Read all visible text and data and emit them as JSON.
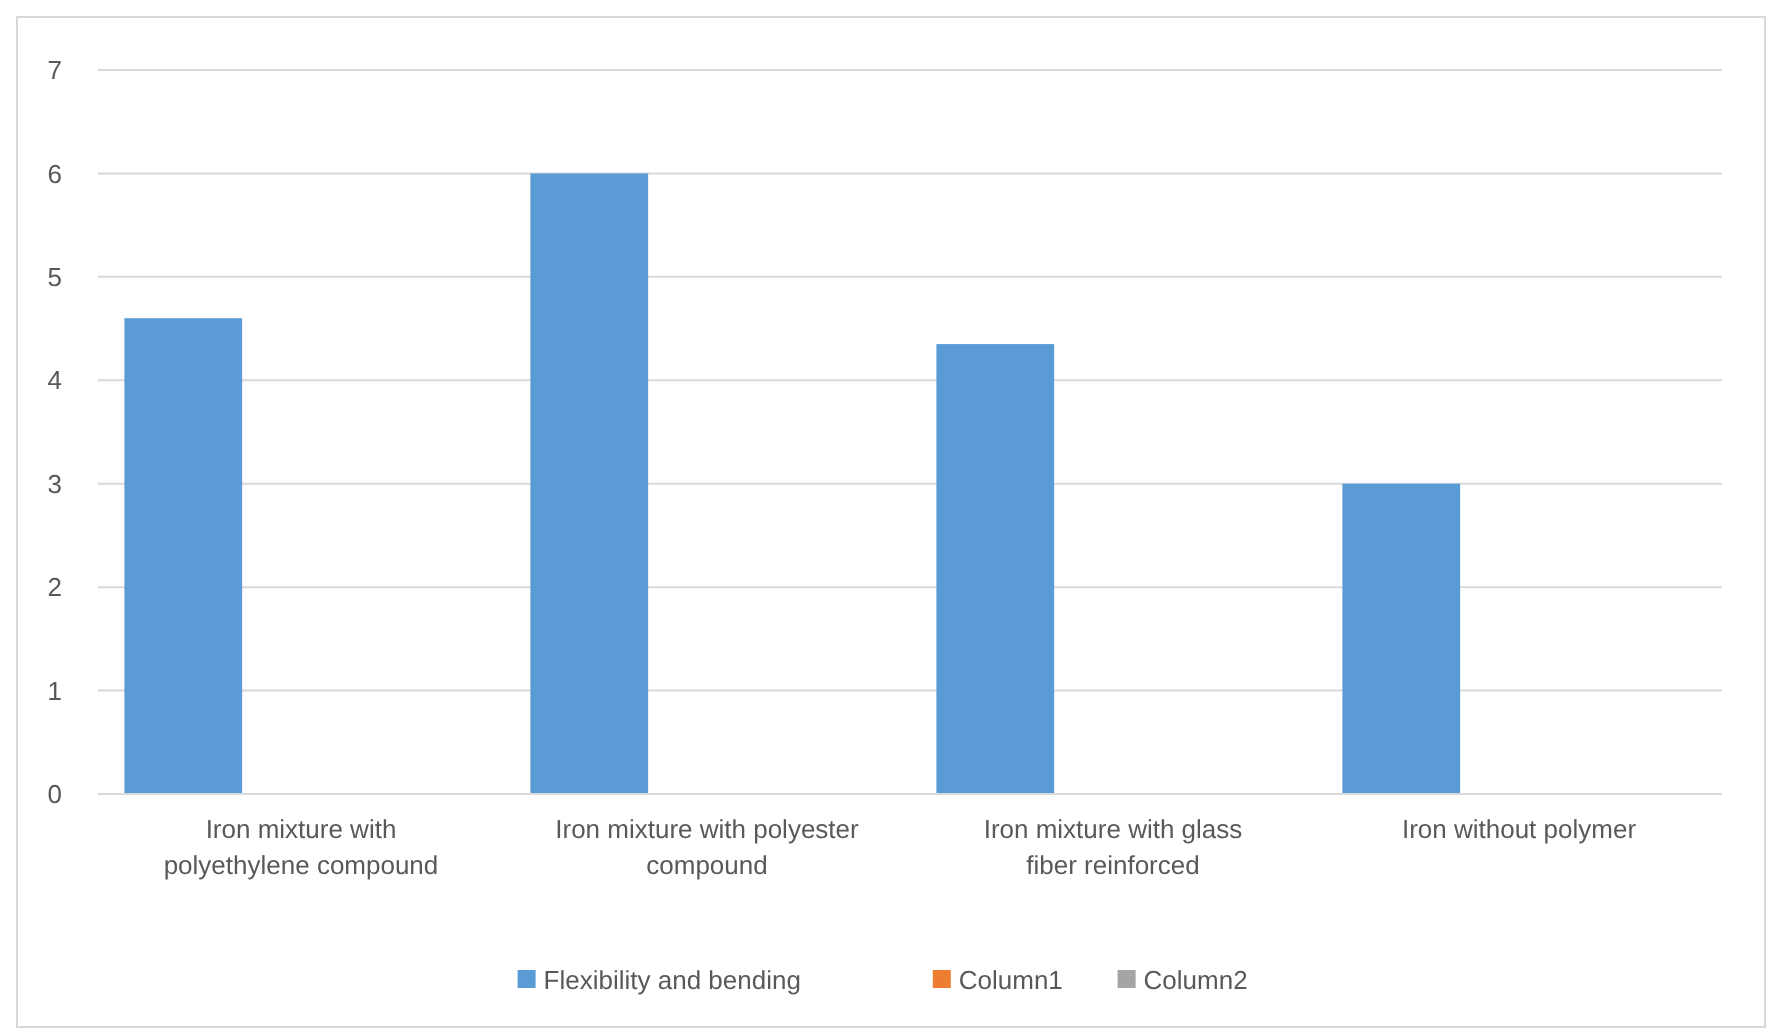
{
  "chart_data": {
    "type": "bar",
    "categories": [
      "Iron mixture with polyethylene compound",
      "Iron mixture with polyester compound",
      "Iron mixture with glass fiber reinforced",
      "Iron without polymer"
    ],
    "series": [
      {
        "name": "Flexibility and bending",
        "color": "#5b9bd5",
        "values": [
          4.6,
          6.0,
          4.35,
          3.0
        ]
      },
      {
        "name": "Column1",
        "color": "#ed7d31",
        "values": [
          null,
          null,
          null,
          null
        ]
      },
      {
        "name": "Column2",
        "color": "#a5a5a5",
        "values": [
          null,
          null,
          null,
          null
        ]
      }
    ],
    "ylim": [
      0,
      7
    ],
    "yticks": [
      0,
      1,
      2,
      3,
      4,
      5,
      6,
      7
    ],
    "grid": "y",
    "legend": "bottom"
  }
}
